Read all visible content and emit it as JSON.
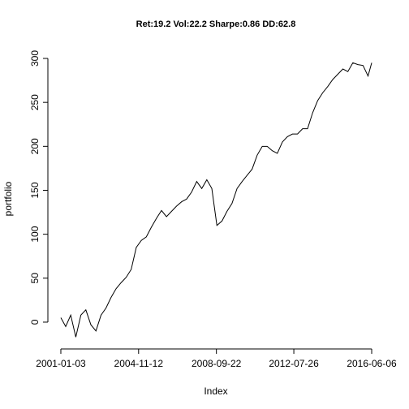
{
  "chart_data": {
    "type": "line",
    "title": "Ret:19.2 Vol:22.2 Sharpe:0.86 DD:62.8",
    "x_label": "Index",
    "y_label": "portfolio",
    "x": [
      "2001-01-03",
      "2001-04-01",
      "2001-07-01",
      "2001-10-01",
      "2002-01-01",
      "2002-04-01",
      "2002-07-01",
      "2002-10-01",
      "2003-01-01",
      "2003-04-01",
      "2003-07-01",
      "2003-10-01",
      "2004-01-01",
      "2004-04-01",
      "2004-07-01",
      "2004-10-01",
      "2005-01-01",
      "2005-04-01",
      "2005-07-01",
      "2005-10-01",
      "2006-01-01",
      "2006-04-01",
      "2006-07-01",
      "2006-10-01",
      "2007-01-01",
      "2007-04-01",
      "2007-07-01",
      "2007-10-01",
      "2008-01-01",
      "2008-04-01",
      "2008-07-01",
      "2008-10-01",
      "2009-01-01",
      "2009-04-01",
      "2009-07-01",
      "2009-10-01",
      "2010-01-01",
      "2010-04-01",
      "2010-07-01",
      "2010-10-01",
      "2011-01-01",
      "2011-04-01",
      "2011-07-01",
      "2011-10-01",
      "2012-01-01",
      "2012-04-01",
      "2012-07-01",
      "2012-10-01",
      "2013-01-01",
      "2013-04-01",
      "2013-07-01",
      "2013-10-01",
      "2014-01-01",
      "2014-04-01",
      "2014-07-01",
      "2014-10-01",
      "2015-01-01",
      "2015-04-01",
      "2015-07-01",
      "2015-10-01",
      "2016-01-01",
      "2016-04-01",
      "2016-06-06"
    ],
    "series": [
      {
        "name": "portfolio",
        "color": "#000000",
        "values": [
          5,
          -5,
          8,
          -17,
          8,
          14,
          -3,
          -10,
          8,
          16,
          28,
          38,
          45,
          51,
          60,
          85,
          93,
          97,
          108,
          118,
          127,
          120,
          126,
          132,
          137,
          140,
          148,
          160,
          152,
          162,
          152,
          110,
          115,
          126,
          135,
          152,
          160,
          167,
          174,
          190,
          200,
          200,
          195,
          192,
          205,
          211,
          214,
          214,
          220,
          220,
          238,
          252,
          261,
          268,
          276,
          282,
          288,
          285,
          295,
          293,
          292,
          280,
          295
        ]
      }
    ],
    "xlim": [
      "2000-05-13",
      "2017-01-27"
    ],
    "xticks": [
      "2001-01-03",
      "2004-11-12",
      "2008-09-22",
      "2012-07-26",
      "2016-06-06"
    ],
    "ylim": [
      -30.5,
      312
    ],
    "yticks": [
      0,
      50,
      100,
      150,
      200,
      250,
      300
    ]
  }
}
